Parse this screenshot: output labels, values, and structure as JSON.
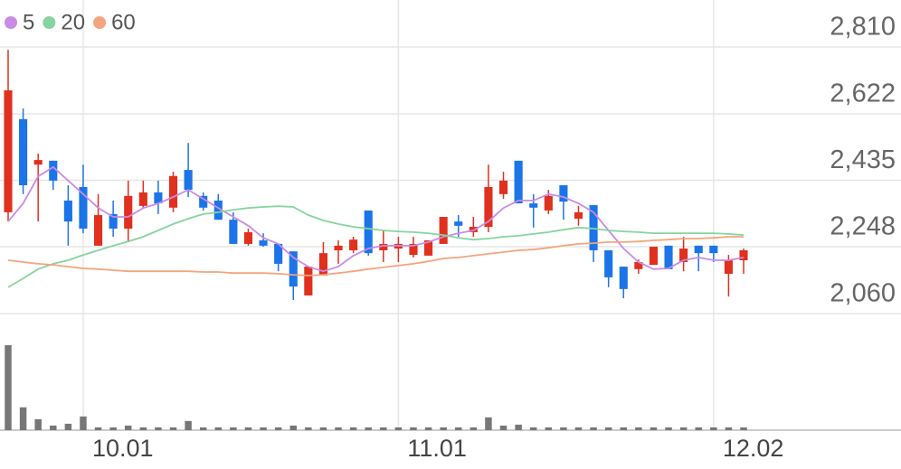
{
  "chart_data": {
    "type": "candlestick",
    "categories": [
      null,
      null,
      null,
      null,
      null,
      "10.01",
      null,
      null,
      null,
      null,
      null,
      null,
      null,
      null,
      null,
      null,
      null,
      null,
      null,
      null,
      null,
      null,
      null,
      null,
      null,
      null,
      "11.01",
      null,
      null,
      null,
      null,
      null,
      null,
      null,
      null,
      null,
      null,
      null,
      null,
      null,
      null,
      null,
      null,
      null,
      null,
      null,
      null,
      "12.02",
      null,
      null
    ],
    "open": [
      2345,
      2607,
      2479,
      2490,
      2378,
      2416,
      2251,
      2340,
      2299,
      2363,
      2401,
      2358,
      2464,
      2391,
      2378,
      2324,
      2256,
      2266,
      2256,
      2235,
      2111,
      2167,
      2238,
      2238,
      2350,
      2238,
      2243,
      2225,
      2223,
      2256,
      2319,
      2289,
      2304,
      2396,
      2490,
      2370,
      2350,
      2421,
      2327,
      2365,
      2238,
      2192,
      2185,
      2197,
      2251,
      2205,
      2251,
      2251,
      2172,
      2210
    ],
    "high": [
      2802,
      2637,
      2510,
      2490,
      2421,
      2479,
      2396,
      2378,
      2434,
      2434,
      2434,
      2459,
      2540,
      2401,
      2396,
      2345,
      2299,
      2286,
      2256,
      2235,
      2192,
      2261,
      2266,
      2276,
      2350,
      2294,
      2276,
      2276,
      2266,
      2332,
      2337,
      2332,
      2479,
      2459,
      2490,
      2396,
      2408,
      2421,
      2363,
      2365,
      2238,
      2192,
      2212,
      2248,
      2251,
      2276,
      2251,
      2251,
      2225,
      2243
    ],
    "low": [
      2319,
      2396,
      2319,
      2408,
      2251,
      2286,
      2251,
      2276,
      2263,
      2358,
      2340,
      2345,
      2388,
      2350,
      2324,
      2256,
      2251,
      2248,
      2179,
      2098,
      2111,
      2167,
      2200,
      2230,
      2223,
      2205,
      2205,
      2218,
      2223,
      2256,
      2276,
      2276,
      2289,
      2383,
      2370,
      2302,
      2340,
      2324,
      2307,
      2205,
      2134,
      2103,
      2172,
      2197,
      2185,
      2179,
      2179,
      2205,
      2108,
      2172
    ],
    "close": [
      2688,
      2421,
      2492,
      2434,
      2319,
      2299,
      2337,
      2299,
      2391,
      2401,
      2370,
      2447,
      2408,
      2358,
      2324,
      2256,
      2289,
      2251,
      2200,
      2136,
      2192,
      2230,
      2251,
      2268,
      2230,
      2256,
      2256,
      2256,
      2266,
      2332,
      2307,
      2304,
      2416,
      2434,
      2370,
      2358,
      2391,
      2375,
      2345,
      2238,
      2162,
      2129,
      2205,
      2248,
      2185,
      2243,
      2230,
      2230,
      2210,
      2238
    ],
    "up_color": "#e0301e",
    "down_color": "#1b74e8",
    "ylim": [
      2060,
      2810
    ],
    "yticks": [
      {
        "value": 2810,
        "label": "2,810"
      },
      {
        "value": 2622,
        "label": "2,622"
      },
      {
        "value": 2435,
        "label": "2,435"
      },
      {
        "value": 2248,
        "label": "2,248"
      },
      {
        "value": 2060,
        "label": "2,060"
      }
    ],
    "grid": true,
    "series": [
      {
        "name": "5",
        "color": "#c98be6",
        "values": [
          2319,
          2370,
          2446,
          2472,
          2434,
          2396,
          2357,
          2332,
          2332,
          2357,
          2370,
          2388,
          2408,
          2383,
          2357,
          2332,
          2307,
          2273,
          2256,
          2218,
          2192,
          2179,
          2192,
          2223,
          2243,
          2251,
          2251,
          2251,
          2261,
          2276,
          2286,
          2294,
          2319,
          2357,
          2378,
          2378,
          2396,
          2388,
          2370,
          2345,
          2294,
          2243,
          2205,
          2185,
          2187,
          2210,
          2218,
          2210,
          2210,
          2218
        ]
      },
      {
        "name": "20",
        "color": "#86d49e",
        "values": [
          2134,
          2159,
          2185,
          2200,
          2210,
          2225,
          2238,
          2251,
          2263,
          2276,
          2294,
          2312,
          2327,
          2340,
          2345,
          2352,
          2357,
          2360,
          2362,
          2360,
          2337,
          2322,
          2312,
          2304,
          2299,
          2294,
          2291,
          2289,
          2286,
          2281,
          2273,
          2268,
          2271,
          2276,
          2279,
          2284,
          2289,
          2296,
          2302,
          2299,
          2294,
          2291,
          2289,
          2286,
          2286,
          2286,
          2286,
          2286,
          2284,
          2281
        ]
      },
      {
        "name": "60",
        "color": "#f4a47e",
        "values": [
          2210,
          2205,
          2200,
          2197,
          2192,
          2187,
          2185,
          2182,
          2179,
          2179,
          2179,
          2179,
          2179,
          2177,
          2177,
          2174,
          2174,
          2174,
          2172,
          2169,
          2167,
          2169,
          2174,
          2179,
          2185,
          2190,
          2195,
          2200,
          2207,
          2215,
          2218,
          2223,
          2228,
          2233,
          2238,
          2240,
          2245,
          2251,
          2256,
          2258,
          2261,
          2261,
          2263,
          2266,
          2268,
          2271,
          2271,
          2273,
          2276,
          2276
        ]
      }
    ],
    "volume": {
      "color": "#777777",
      "ylim": [
        0,
        95
      ],
      "values": [
        93,
        25,
        12,
        5,
        7,
        15,
        3,
        3,
        5,
        3,
        3,
        3,
        10,
        3,
        3,
        3,
        3,
        3,
        3,
        5,
        3,
        3,
        3,
        3,
        3,
        3,
        3,
        3,
        3,
        3,
        3,
        3,
        14,
        5,
        6,
        3,
        3,
        3,
        3,
        3,
        3,
        3,
        3,
        3,
        3,
        3,
        3,
        3,
        3,
        3
      ]
    }
  }
}
